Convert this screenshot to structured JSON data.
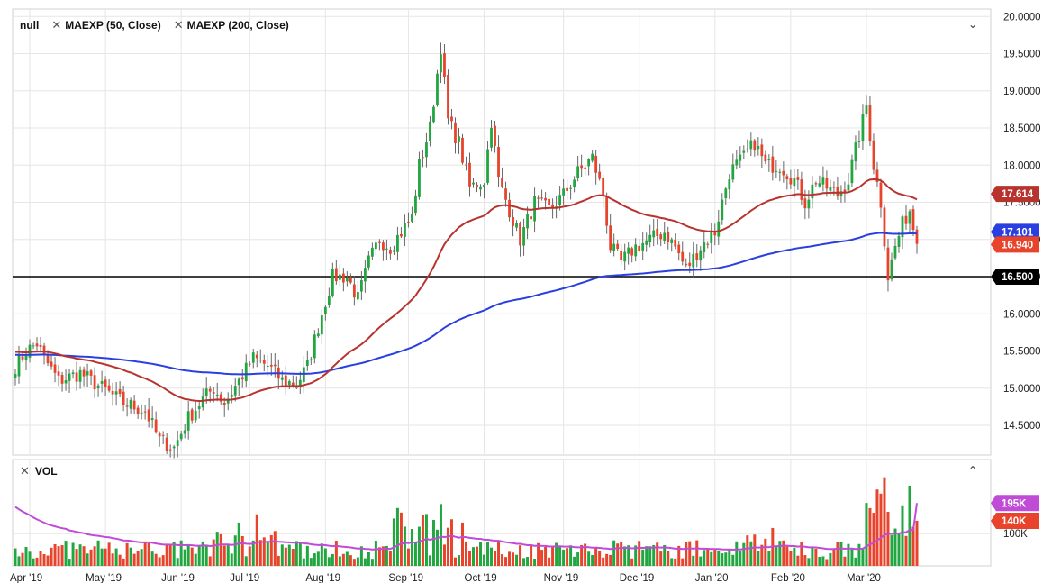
{
  "legend": {
    "symbol": "null",
    "ma50_label": "MAEXP (50, Close)",
    "ma200_label": "MAEXP (200, Close)",
    "close_icon": "close-icon",
    "collapse_icon": "chevron-down-icon"
  },
  "volume_panel": {
    "label": "VOL",
    "close_icon": "close-icon",
    "collapse_icon": "chevron-up-icon"
  },
  "colors": {
    "up": "#21a640",
    "down": "#e8432b",
    "ma50": "#b8332e",
    "ma200": "#2a3fe0",
    "vol_ma": "#c04bd6",
    "grid": "#e6e6e6",
    "support": "#000000"
  },
  "chart_data": {
    "type": "candlestick",
    "price_axis": {
      "ticks": [
        "20.0000",
        "19.5000",
        "19.0000",
        "18.5000",
        "18.0000",
        "17.5000",
        "17.0000",
        "16.5000",
        "16.0000",
        "15.5000",
        "15.0000",
        "14.5000"
      ],
      "range": [
        14.1,
        20.1
      ]
    },
    "volume_axis": {
      "ticks": [
        "100K"
      ],
      "range": [
        0,
        330000
      ]
    },
    "x_axis": {
      "labels": [
        "Apr '19",
        "May '19",
        "Jun '19",
        "Jul '19",
        "Aug '19",
        "Sep '19",
        "Oct '19",
        "Nov '19",
        "Dec '19",
        "Jan '20",
        "Feb '20",
        "Mar '20"
      ]
    },
    "price_tags": [
      {
        "label": "17.614",
        "value": 17.614,
        "color": "#b8332e",
        "series": "ma50"
      },
      {
        "label": "17.101",
        "value": 17.101,
        "color": "#2a3fe0",
        "series": "ma200"
      },
      {
        "label": "16.940",
        "value": 16.94,
        "color": "#e8432b",
        "series": "last"
      },
      {
        "label": "16.500",
        "value": 16.5,
        "color": "#000000",
        "series": "support"
      }
    ],
    "volume_tags": [
      {
        "label": "195K",
        "value": 195000,
        "color": "#c04bd6"
      },
      {
        "label": "140K",
        "value": 140000,
        "color": "#e8432b"
      }
    ],
    "support_level": 16.5,
    "anchors": [
      [
        0,
        15.3
      ],
      [
        3,
        15.5
      ],
      [
        6,
        15.6
      ],
      [
        8,
        15.4
      ],
      [
        12,
        15.1
      ],
      [
        18,
        15.2
      ],
      [
        24,
        15.0
      ],
      [
        30,
        14.8
      ],
      [
        36,
        14.7
      ],
      [
        40,
        14.3
      ],
      [
        44,
        14.2
      ],
      [
        48,
        14.6
      ],
      [
        52,
        14.85
      ],
      [
        55,
        15.0
      ],
      [
        58,
        14.8
      ],
      [
        62,
        15.1
      ],
      [
        66,
        15.4
      ],
      [
        70,
        15.3
      ],
      [
        74,
        15.1
      ],
      [
        78,
        15.05
      ],
      [
        81,
        15.3
      ],
      [
        85,
        16.0
      ],
      [
        88,
        16.5
      ],
      [
        92,
        16.5
      ],
      [
        95,
        16.2
      ],
      [
        98,
        16.7
      ],
      [
        101,
        17.0
      ],
      [
        104,
        16.9
      ],
      [
        107,
        17.1
      ],
      [
        110,
        17.3
      ],
      [
        112,
        18.0
      ],
      [
        115,
        18.5
      ],
      [
        118,
        19.6
      ],
      [
        120,
        18.6
      ],
      [
        123,
        18.3
      ],
      [
        126,
        17.7
      ],
      [
        130,
        17.8
      ],
      [
        132,
        18.6
      ],
      [
        134,
        17.8
      ],
      [
        137,
        17.4
      ],
      [
        140,
        17.0
      ],
      [
        144,
        17.5
      ],
      [
        148,
        17.4
      ],
      [
        152,
        17.6
      ],
      [
        156,
        17.9
      ],
      [
        160,
        18.1
      ],
      [
        163,
        17.6
      ],
      [
        165,
        16.9
      ],
      [
        168,
        16.7
      ],
      [
        172,
        16.9
      ],
      [
        176,
        17.0
      ],
      [
        180,
        17.1
      ],
      [
        183,
        16.9
      ],
      [
        186,
        16.6
      ],
      [
        190,
        16.9
      ],
      [
        194,
        17.1
      ],
      [
        198,
        17.9
      ],
      [
        202,
        18.1
      ],
      [
        205,
        18.3
      ],
      [
        208,
        18.0
      ],
      [
        212,
        18.0
      ],
      [
        216,
        17.8
      ],
      [
        219,
        17.5
      ],
      [
        222,
        17.8
      ],
      [
        225,
        17.7
      ],
      [
        228,
        17.6
      ],
      [
        231,
        17.8
      ],
      [
        234,
        18.4
      ],
      [
        236,
        18.8
      ],
      [
        238,
        18.0
      ],
      [
        240,
        17.5
      ],
      [
        242,
        16.5
      ],
      [
        244,
        16.9
      ],
      [
        246,
        17.2
      ],
      [
        248,
        17.4
      ],
      [
        250,
        16.94
      ]
    ],
    "candle_count": 251
  }
}
